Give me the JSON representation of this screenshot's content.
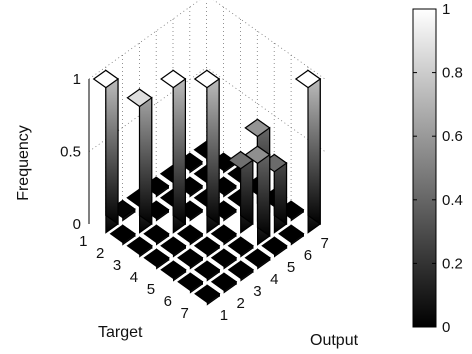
{
  "chart_data": {
    "type": "bar3d",
    "title": "",
    "xlabel": "Target",
    "ylabel": "Output",
    "zlabel": "Frequency",
    "target_categories": [
      "1",
      "2",
      "3",
      "4",
      "5",
      "6",
      "7"
    ],
    "output_categories": [
      "1",
      "2",
      "3",
      "4",
      "5",
      "6",
      "7"
    ],
    "z_ticks": [
      "0",
      "0.5",
      "1"
    ],
    "zlim": [
      0,
      1
    ],
    "values": [
      [
        1.0,
        0.02,
        0.0,
        0.0,
        0.0,
        0.0,
        0.0
      ],
      [
        0.0,
        0.87,
        0.0,
        0.0,
        0.0,
        0.0,
        0.0
      ],
      [
        0.0,
        0.0,
        1.0,
        0.0,
        0.0,
        0.0,
        0.0
      ],
      [
        0.0,
        0.0,
        0.0,
        1.0,
        0.0,
        0.0,
        0.0
      ],
      [
        0.0,
        0.0,
        0.0,
        0.0,
        0.44,
        0.58,
        0.0
      ],
      [
        0.0,
        0.0,
        0.0,
        0.0,
        0.56,
        0.42,
        0.0
      ],
      [
        0.0,
        0.0,
        0.0,
        0.0,
        0.0,
        0.0,
        1.0
      ]
    ],
    "colormap": "gray",
    "colorbar": {
      "ticks": [
        "0",
        "0.2",
        "0.4",
        "0.6",
        "0.8",
        "1"
      ],
      "range": [
        0,
        1
      ]
    },
    "grid": true
  }
}
